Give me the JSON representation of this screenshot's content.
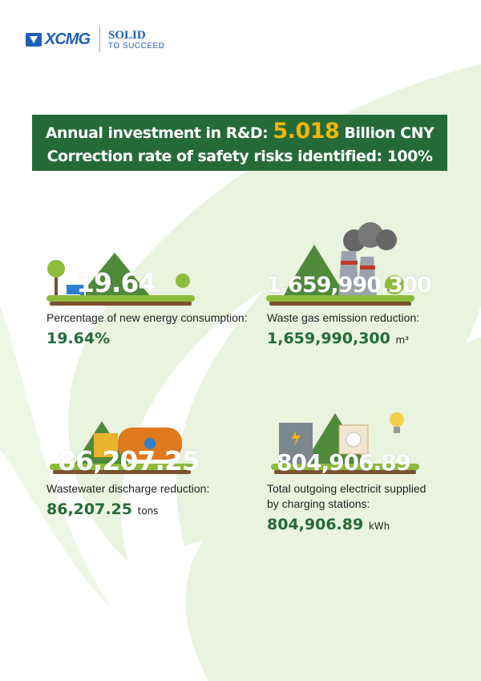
{
  "logo": {
    "brand": "XCMG",
    "tagline_1": "SOLID",
    "tagline_2": "TO SUCCEED"
  },
  "banner": {
    "line1_prefix": "Annual investment in R&D: ",
    "line1_value": "5.018",
    "line1_suffix": " Billion CNY",
    "line2": "Correction rate of safety risks identified: 100%"
  },
  "stats": [
    {
      "big": "19.64",
      "label": "Percentage of new energy consumption:",
      "value": "19.64%",
      "unit": ""
    },
    {
      "big": "1,659,990,300",
      "label": "Waste gas emission reduction:",
      "value": "1,659,990,300",
      "unit": "m³"
    },
    {
      "big": "86,207.25",
      "label": "Wastewater discharge reduction:",
      "value": "86,207.25",
      "unit": "tons"
    },
    {
      "big": "804,906.89",
      "label": "Total outgoing electricit supplied by charging stations:",
      "value": "804,906.89",
      "unit": "kWh"
    }
  ],
  "colors": {
    "brand_blue": "#1f5fb8",
    "banner_green": "#256b38",
    "highlight_yellow": "#f2b705",
    "leaf_bg": "#e9f3de"
  }
}
